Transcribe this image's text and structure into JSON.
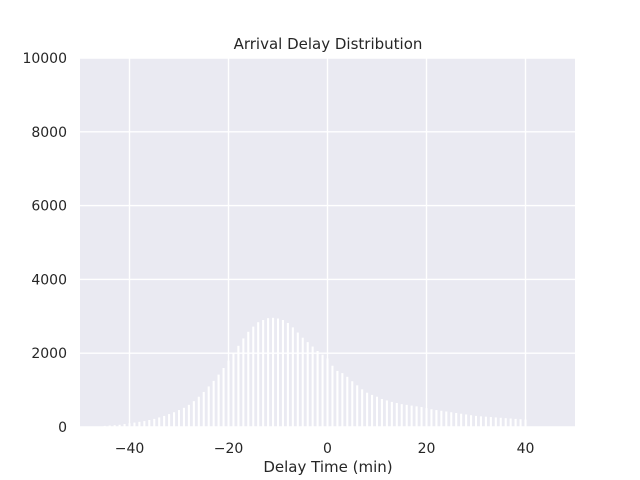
{
  "chart_data": {
    "type": "bar",
    "title": "Arrival Delay Distribution",
    "xlabel": "Delay Time (min)",
    "ylabel": "",
    "xlim": [
      -50,
      50
    ],
    "ylim": [
      0,
      10000
    ],
    "grid": true,
    "legend": "none",
    "colors": {
      "background": "#eaeaf2",
      "grid": "#ffffff",
      "bar": "#ffffff",
      "text": "#262626"
    },
    "x_ticks": [
      "−40",
      "−20",
      "0",
      "20",
      "40"
    ],
    "x_tick_values": [
      -40,
      -20,
      0,
      20,
      40
    ],
    "y_ticks": [
      "0",
      "2000",
      "4000",
      "6000",
      "8000",
      "10000"
    ],
    "y_tick_values": [
      0,
      2000,
      4000,
      6000,
      8000,
      10000
    ],
    "bin_width": 1,
    "x": [
      -45,
      -44,
      -43,
      -42,
      -41,
      -40,
      -39,
      -38,
      -37,
      -36,
      -35,
      -34,
      -33,
      -32,
      -31,
      -30,
      -29,
      -28,
      -27,
      -26,
      -25,
      -24,
      -23,
      -22,
      -21,
      -20,
      -19,
      -18,
      -17,
      -16,
      -15,
      -14,
      -13,
      -12,
      -11,
      -10,
      -9,
      -8,
      -7,
      -6,
      -5,
      -4,
      -3,
      -2,
      -1,
      0,
      1,
      2,
      3,
      4,
      5,
      6,
      7,
      8,
      9,
      10,
      11,
      12,
      13,
      14,
      15,
      16,
      17,
      18,
      19,
      20,
      21,
      22,
      23,
      24,
      25,
      26,
      27,
      28,
      29,
      30,
      31,
      32,
      33,
      34,
      35,
      36,
      37,
      38,
      39,
      40
    ],
    "values": [
      30,
      40,
      50,
      60,
      80,
      100,
      120,
      140,
      160,
      190,
      220,
      260,
      300,
      350,
      400,
      460,
      520,
      600,
      700,
      820,
      950,
      1100,
      1250,
      1420,
      1600,
      1800,
      2000,
      2200,
      2400,
      2580,
      2720,
      2840,
      2900,
      2950,
      2960,
      2940,
      2900,
      2820,
      2700,
      2560,
      2420,
      2300,
      2180,
      2060,
      1960,
      1860,
      1660,
      1520,
      1460,
      1360,
      1240,
      1130,
      1020,
      930,
      870,
      820,
      760,
      720,
      680,
      650,
      620,
      600,
      580,
      560,
      540,
      510,
      480,
      460,
      440,
      420,
      400,
      380,
      360,
      340,
      320,
      300,
      290,
      280,
      270,
      260,
      250,
      240,
      230,
      220,
      210,
      200
    ]
  }
}
